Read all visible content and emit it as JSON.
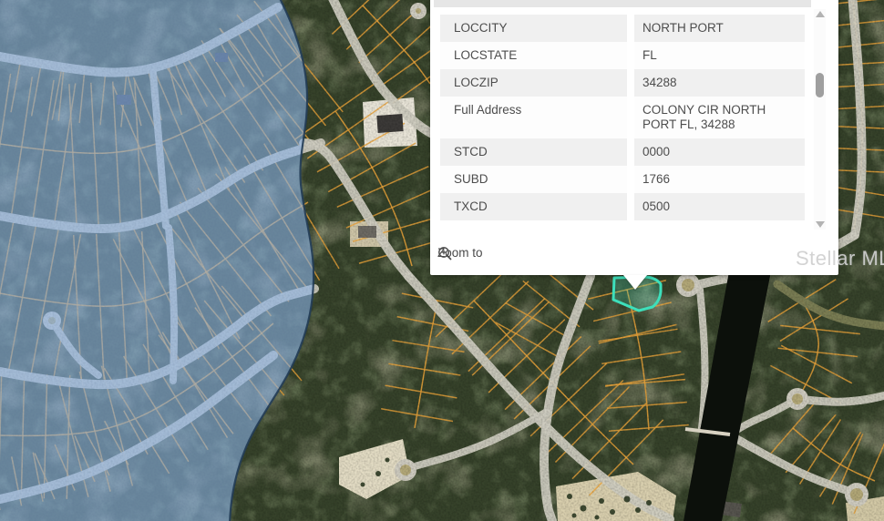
{
  "popup": {
    "rows": [
      {
        "label": "LOCCITY",
        "value": "NORTH PORT"
      },
      {
        "label": "LOCSTATE",
        "value": "FL"
      },
      {
        "label": "LOCZIP",
        "value": "34288"
      },
      {
        "label": "Full Address",
        "value": "COLONY CIR NORTH PORT FL, 34288"
      },
      {
        "label": "STCD",
        "value": "0000"
      },
      {
        "label": "SUBD",
        "value": "1766"
      },
      {
        "label": "TXCD",
        "value": "0500"
      }
    ],
    "zoom_to_label": "Zoom to"
  },
  "watermark": {
    "text": "Stellar MLS"
  },
  "map": {
    "selection_outline_color": "#3ddfbb",
    "selection_area_color": "#8ab2e8",
    "parcel_line_color": "#eca43a",
    "road_color": "#cfccc0",
    "water_color": "#0c100b"
  },
  "icons": [
    "zoom-to-magnifier-icon",
    "scroll-up-icon",
    "scroll-down-icon"
  ]
}
